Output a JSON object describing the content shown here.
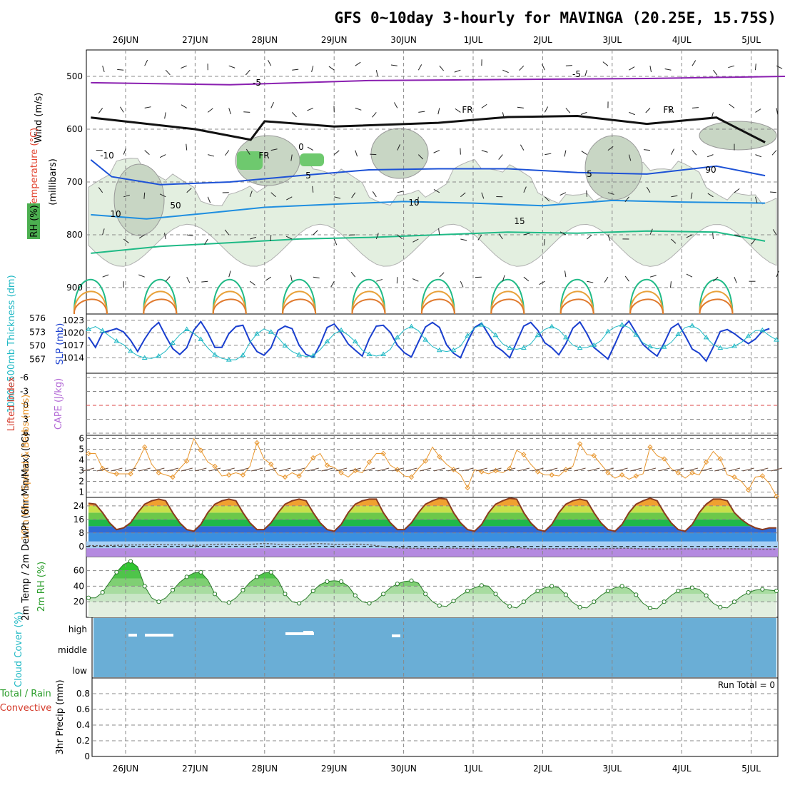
{
  "title": "GFS 0~10day 3-hourly for MAVINGA (20.25E, 15.75S)",
  "chart_data": [
    {
      "panel": "upper-air",
      "type": "contour",
      "x_dates": [
        "26JUN",
        "27JUN",
        "28JUN",
        "29JUN",
        "30JUN",
        "1JUL",
        "2JUL",
        "3JUL",
        "4JUL",
        "5JUL"
      ],
      "ylabel": "(millibars)",
      "yticks": [
        500,
        600,
        700,
        800,
        900
      ],
      "ylim": [
        950,
        450
      ],
      "left_labels": [
        "Wind (m/s)",
        "Temperature (°C)",
        "RH (%)"
      ],
      "contour_labels": [
        "-5",
        "-5",
        "FR",
        "FR",
        "FR",
        "0",
        "5",
        "5",
        "10",
        "10",
        "15",
        "-10",
        "50",
        "90"
      ],
      "isotherms": [
        {
          "label": "-5",
          "series": [
            [
              0,
              512
            ],
            [
              2,
              516
            ],
            [
              4,
              508
            ],
            [
              6,
              506
            ],
            [
              8,
              504
            ],
            [
              10,
              500
            ]
          ]
        },
        {
          "label": "FR",
          "series": [
            [
              0,
              578
            ],
            [
              1.5,
              600
            ],
            [
              2.3,
              620
            ],
            [
              2.5,
              585
            ],
            [
              3.5,
              595
            ],
            [
              5,
              588
            ],
            [
              6,
              577
            ],
            [
              7,
              575
            ],
            [
              8,
              590
            ],
            [
              9,
              578
            ],
            [
              9.7,
              625
            ]
          ]
        },
        {
          "label": "5",
          "series": [
            [
              0,
              658
            ],
            [
              0.3,
              690
            ],
            [
              1,
              705
            ],
            [
              2,
              700
            ],
            [
              3,
              688
            ],
            [
              4,
              677
            ],
            [
              5,
              675
            ],
            [
              6,
              675
            ],
            [
              7,
              682
            ],
            [
              8,
              685
            ],
            [
              9,
              670
            ],
            [
              9.7,
              688
            ]
          ]
        },
        {
          "label": "10",
          "series": [
            [
              0,
              762
            ],
            [
              0.8,
              770
            ],
            [
              1.6,
              760
            ],
            [
              2.5,
              748
            ],
            [
              3.5,
              742
            ],
            [
              4.5,
              737
            ],
            [
              5.5,
              740
            ],
            [
              6.5,
              745
            ],
            [
              7.5,
              735
            ],
            [
              8.5,
              738
            ],
            [
              9.7,
              740
            ]
          ]
        },
        {
          "label": "15",
          "series": [
            [
              0,
              835
            ],
            [
              1,
              822
            ],
            [
              2,
              815
            ],
            [
              3,
              808
            ],
            [
              4,
              805
            ],
            [
              5,
              800
            ],
            [
              6,
              795
            ],
            [
              7,
              797
            ],
            [
              8,
              793
            ],
            [
              9,
              795
            ],
            [
              9.7,
              812
            ]
          ]
        }
      ]
    },
    {
      "panel": "slp-thickness",
      "type": "line",
      "y_left_label": "1000~500mb Thickness (dm)",
      "y_right_label": "SLP (mb)",
      "yticks_left": [
        567,
        570,
        573,
        576
      ],
      "yticks_right": [
        1014,
        1017,
        1020,
        1023
      ],
      "series": [
        {
          "name": "SLP (mb)",
          "color": "#1a3fcf",
          "values": [
            1019,
            1016.5,
            1020,
            1020.5,
            1021,
            1020.2,
            1018.2,
            1015.5,
            1018.5,
            1021,
            1022.5,
            1019.2,
            1016.2,
            1014.8,
            1016.4,
            1020.6,
            1022.7,
            1020,
            1016.5,
            1016.5,
            1019.8,
            1021.5,
            1021.8,
            1018,
            1015.5,
            1014.6,
            1016.4,
            1020.6,
            1021.6,
            1021,
            1017,
            1014.8,
            1014.1,
            1017.2,
            1021.3,
            1022.1,
            1020,
            1017.3,
            1015.8,
            1014.4,
            1018.6,
            1021.6,
            1021.8,
            1020.1,
            1017,
            1015.2,
            1014.2,
            1017.8,
            1021.4,
            1022.5,
            1021.3,
            1017.1,
            1015.1,
            1014,
            1017.9,
            1021.3,
            1022.3,
            1019.6,
            1016.8,
            1015.6,
            1014,
            1017.8,
            1021.6,
            1022.5,
            1020.6,
            1017.6,
            1016.4,
            1014.7,
            1017.4,
            1021.1,
            1022.6,
            1019.8,
            1016.5,
            1015.1,
            1013.7,
            1017.3,
            1021.1,
            1022.8,
            1020,
            1017.2,
            1015.7,
            1014.4,
            1017.5,
            1021.1,
            1022.2,
            1019.3,
            1016.1,
            1015.1,
            1013.2,
            1016.6,
            1020.3,
            1020.8,
            1019.8,
            1018.5,
            1017.4,
            1018.5,
            1020.4,
            1021
          ]
        },
        {
          "name": "1000-500mb Thickness (dm)",
          "color": "#1fb8c4",
          "values": [
            573.6,
            574.2,
            573.3,
            572.1,
            571,
            570.2,
            568.8,
            567.8,
            567.3,
            567.2,
            567.7,
            568.8,
            570.6,
            572.4,
            573.6,
            572.7,
            571.4,
            569.5,
            568,
            567.2,
            566.9,
            566.9,
            567.9,
            570.7,
            572.6,
            573.7,
            573,
            571.8,
            570,
            568.7,
            568,
            567.6,
            567.8,
            569.1,
            570.9,
            572.6,
            573.4,
            572.3,
            570.9,
            569,
            568.1,
            567.7,
            568.1,
            569.2,
            571.8,
            573.5,
            574.2,
            573.3,
            571.3,
            569.8,
            569,
            568.7,
            569,
            569.9,
            572.2,
            573.9,
            574.6,
            573.8,
            572.3,
            570.4,
            569.5,
            569.2,
            569.5,
            570.4,
            572.3,
            573.6,
            574.2,
            573.5,
            571.8,
            570.1,
            569.5,
            569.6,
            570.1,
            571.1,
            573.1,
            574.1,
            574.6,
            574,
            572.4,
            570.6,
            569.8,
            569.3,
            569.7,
            570.7,
            572.5,
            574,
            574.4,
            573.6,
            571.8,
            570.2,
            569.5,
            569.4,
            569.9,
            570.7,
            572.1,
            573.3,
            573.4,
            572.2,
            571.3
          ]
        }
      ]
    },
    {
      "panel": "stability",
      "type": "line",
      "y_left_label": "Lifted Index",
      "y_right_label": "CAPE (J/kg)",
      "yticks": [
        -6,
        -3,
        0,
        3,
        6
      ],
      "ylim": [
        6,
        -6
      ]
    },
    {
      "panel": "wind10m",
      "type": "line",
      "ylabel": "10m Wind Speed & Barbs (m/s)",
      "yticks": [
        1,
        2,
        3,
        4,
        5,
        6
      ],
      "ylim": [
        0.5,
        6.3
      ],
      "series": [
        {
          "name": "10m Wind Speed",
          "color": "#e8962e",
          "values": [
            4.6,
            4.6,
            3.2,
            2.8,
            2.7,
            2.7,
            2.7,
            3.8,
            5.2,
            3.6,
            2.8,
            2.6,
            2.4,
            3.2,
            3.9,
            6,
            4.9,
            3.8,
            3.4,
            2.5,
            2.6,
            2.8,
            2.6,
            3.4,
            5.6,
            4.1,
            3.6,
            2.6,
            2.4,
            2.8,
            2.5,
            3.3,
            4.2,
            4.6,
            3.5,
            3.3,
            2.8,
            2.4,
            3,
            2.8,
            3.8,
            4.6,
            4.6,
            3.5,
            3.1,
            2.5,
            2.4,
            3.2,
            3.9,
            5.2,
            4.3,
            3.6,
            3.1,
            2.6,
            1.4,
            3.1,
            2.9,
            2.7,
            3,
            2.8,
            3.2,
            4.9,
            4.5,
            3.6,
            2.9,
            2.6,
            2.6,
            2.5,
            3.1,
            3.4,
            5.5,
            4.5,
            4.4,
            3.6,
            2.8,
            2.3,
            2.6,
            2.2,
            2.5,
            2.7,
            5.2,
            4.4,
            4.1,
            3.2,
            2.8,
            2.3,
            2.8,
            2.6,
            3.8,
            4.8,
            4.1,
            2.6,
            2.4,
            2,
            1.2,
            2.4,
            2.5,
            1.8,
            0.6
          ]
        }
      ]
    },
    {
      "panel": "temperature2m",
      "type": "area",
      "ylabel": "2m Temp / 2m DewPt (6hr Min/Max) (°C)",
      "yticks": [
        0,
        8,
        16,
        24
      ],
      "ylim": [
        -6,
        29
      ],
      "series": [
        {
          "name": "2m Temp",
          "color": "#8b3a1e",
          "values": [
            25.5,
            25,
            20,
            14,
            10,
            11,
            14,
            20,
            25,
            27,
            28,
            27,
            20,
            14,
            10,
            9,
            13,
            20,
            25,
            27,
            28,
            27,
            20,
            14,
            10,
            10,
            14,
            20,
            25,
            27,
            28,
            27,
            20,
            14,
            10,
            9,
            13,
            20,
            25,
            27,
            28,
            28,
            20,
            14,
            10,
            10,
            14,
            20,
            25,
            27,
            28.5,
            28,
            20,
            14,
            10,
            9,
            13,
            20,
            25,
            27,
            28.5,
            28,
            20,
            14,
            10,
            9,
            13,
            20,
            25,
            27,
            28,
            27,
            20,
            14,
            10,
            9,
            13,
            20,
            25,
            27,
            28.5,
            27,
            20,
            14,
            10,
            9,
            13,
            20,
            25,
            28,
            28,
            27,
            20,
            16,
            13,
            11,
            10,
            11,
            11
          ]
        },
        {
          "name": "2m DewPt",
          "color": "#666666",
          "values": [
            0.5,
            0.5,
            0.5,
            0.6,
            0.7,
            0.8,
            0.9,
            0.9,
            1,
            1,
            1.1,
            1,
            1,
            1,
            0.8,
            0.7,
            0.8,
            1,
            1.2,
            1.4,
            1.3,
            1.2,
            1.1,
            1.2,
            1.5,
            1.8,
            1.6,
            1.2,
            1.1,
            1.1,
            1.2,
            1.3,
            1.6,
            1.7,
            1.5,
            1.3,
            1.2,
            1.3,
            1.4,
            1.3,
            1,
            0.5,
            0,
            -0.5,
            -0.8,
            -1,
            -1,
            -1.1,
            -1.2,
            -1.2,
            -1.1,
            -1,
            -1,
            -1.1,
            -1.2,
            -1.3,
            -1.3,
            -1.3,
            -1.2,
            -1,
            -0.8,
            -0.6,
            -1,
            -1.3,
            -1.4,
            -1.3,
            -1.3,
            -1.3,
            -1.3,
            -1.2,
            -1.3,
            -1.4,
            -1.4,
            -1.3,
            -1.2,
            -1.1,
            -1,
            -1,
            -1.2,
            -1.4,
            -1.4,
            -1.5,
            -1.5,
            -1.4,
            -1.4,
            -1.4,
            -1.4,
            -1.5,
            -1.5,
            -1.4,
            -1.3,
            -1.3,
            -1.3,
            -1.4,
            -1.5,
            -1.5,
            -1.6,
            -1.6,
            -1.6
          ]
        }
      ]
    },
    {
      "panel": "rh2m",
      "type": "area",
      "ylabel": "2m RH (%)",
      "yticks": [
        20,
        40,
        60
      ],
      "ylim": [
        0,
        78
      ],
      "series": [
        {
          "name": "2m RH",
          "color": "#2a9d2a",
          "values": [
            25,
            25,
            32,
            45,
            58,
            68,
            72,
            65,
            40,
            25,
            20,
            25,
            35,
            45,
            52,
            57,
            58,
            48,
            30,
            20,
            19,
            25,
            35,
            45,
            52,
            57,
            58,
            48,
            30,
            20,
            18,
            24,
            34,
            42,
            46,
            47,
            46,
            40,
            28,
            20,
            18,
            22,
            30,
            38,
            43,
            46,
            47,
            44,
            30,
            20,
            15,
            14,
            21,
            28,
            34,
            38,
            41,
            40,
            30,
            20,
            14,
            12,
            20,
            28,
            34,
            38,
            40,
            38,
            29,
            19,
            13,
            12,
            20,
            28,
            34,
            38,
            40,
            37,
            29,
            18,
            12,
            11,
            20,
            28,
            34,
            37,
            38,
            36,
            28,
            18,
            13,
            12,
            20,
            27,
            32,
            35,
            36,
            35,
            34
          ]
        }
      ]
    },
    {
      "panel": "cloud",
      "type": "heatmap",
      "ylabel": "Cloud Cover (%)",
      "levels": [
        "high",
        "middle",
        "low"
      ]
    },
    {
      "panel": "precip",
      "type": "bar",
      "ylabel": "3hr Precip (mm)",
      "left_labels": [
        "Total / Rain",
        "Convective"
      ],
      "yticks": [
        0,
        0.2,
        0.4,
        0.6,
        0.8
      ],
      "ylim": [
        0,
        1
      ],
      "run_total": "Run Total = 0"
    }
  ]
}
